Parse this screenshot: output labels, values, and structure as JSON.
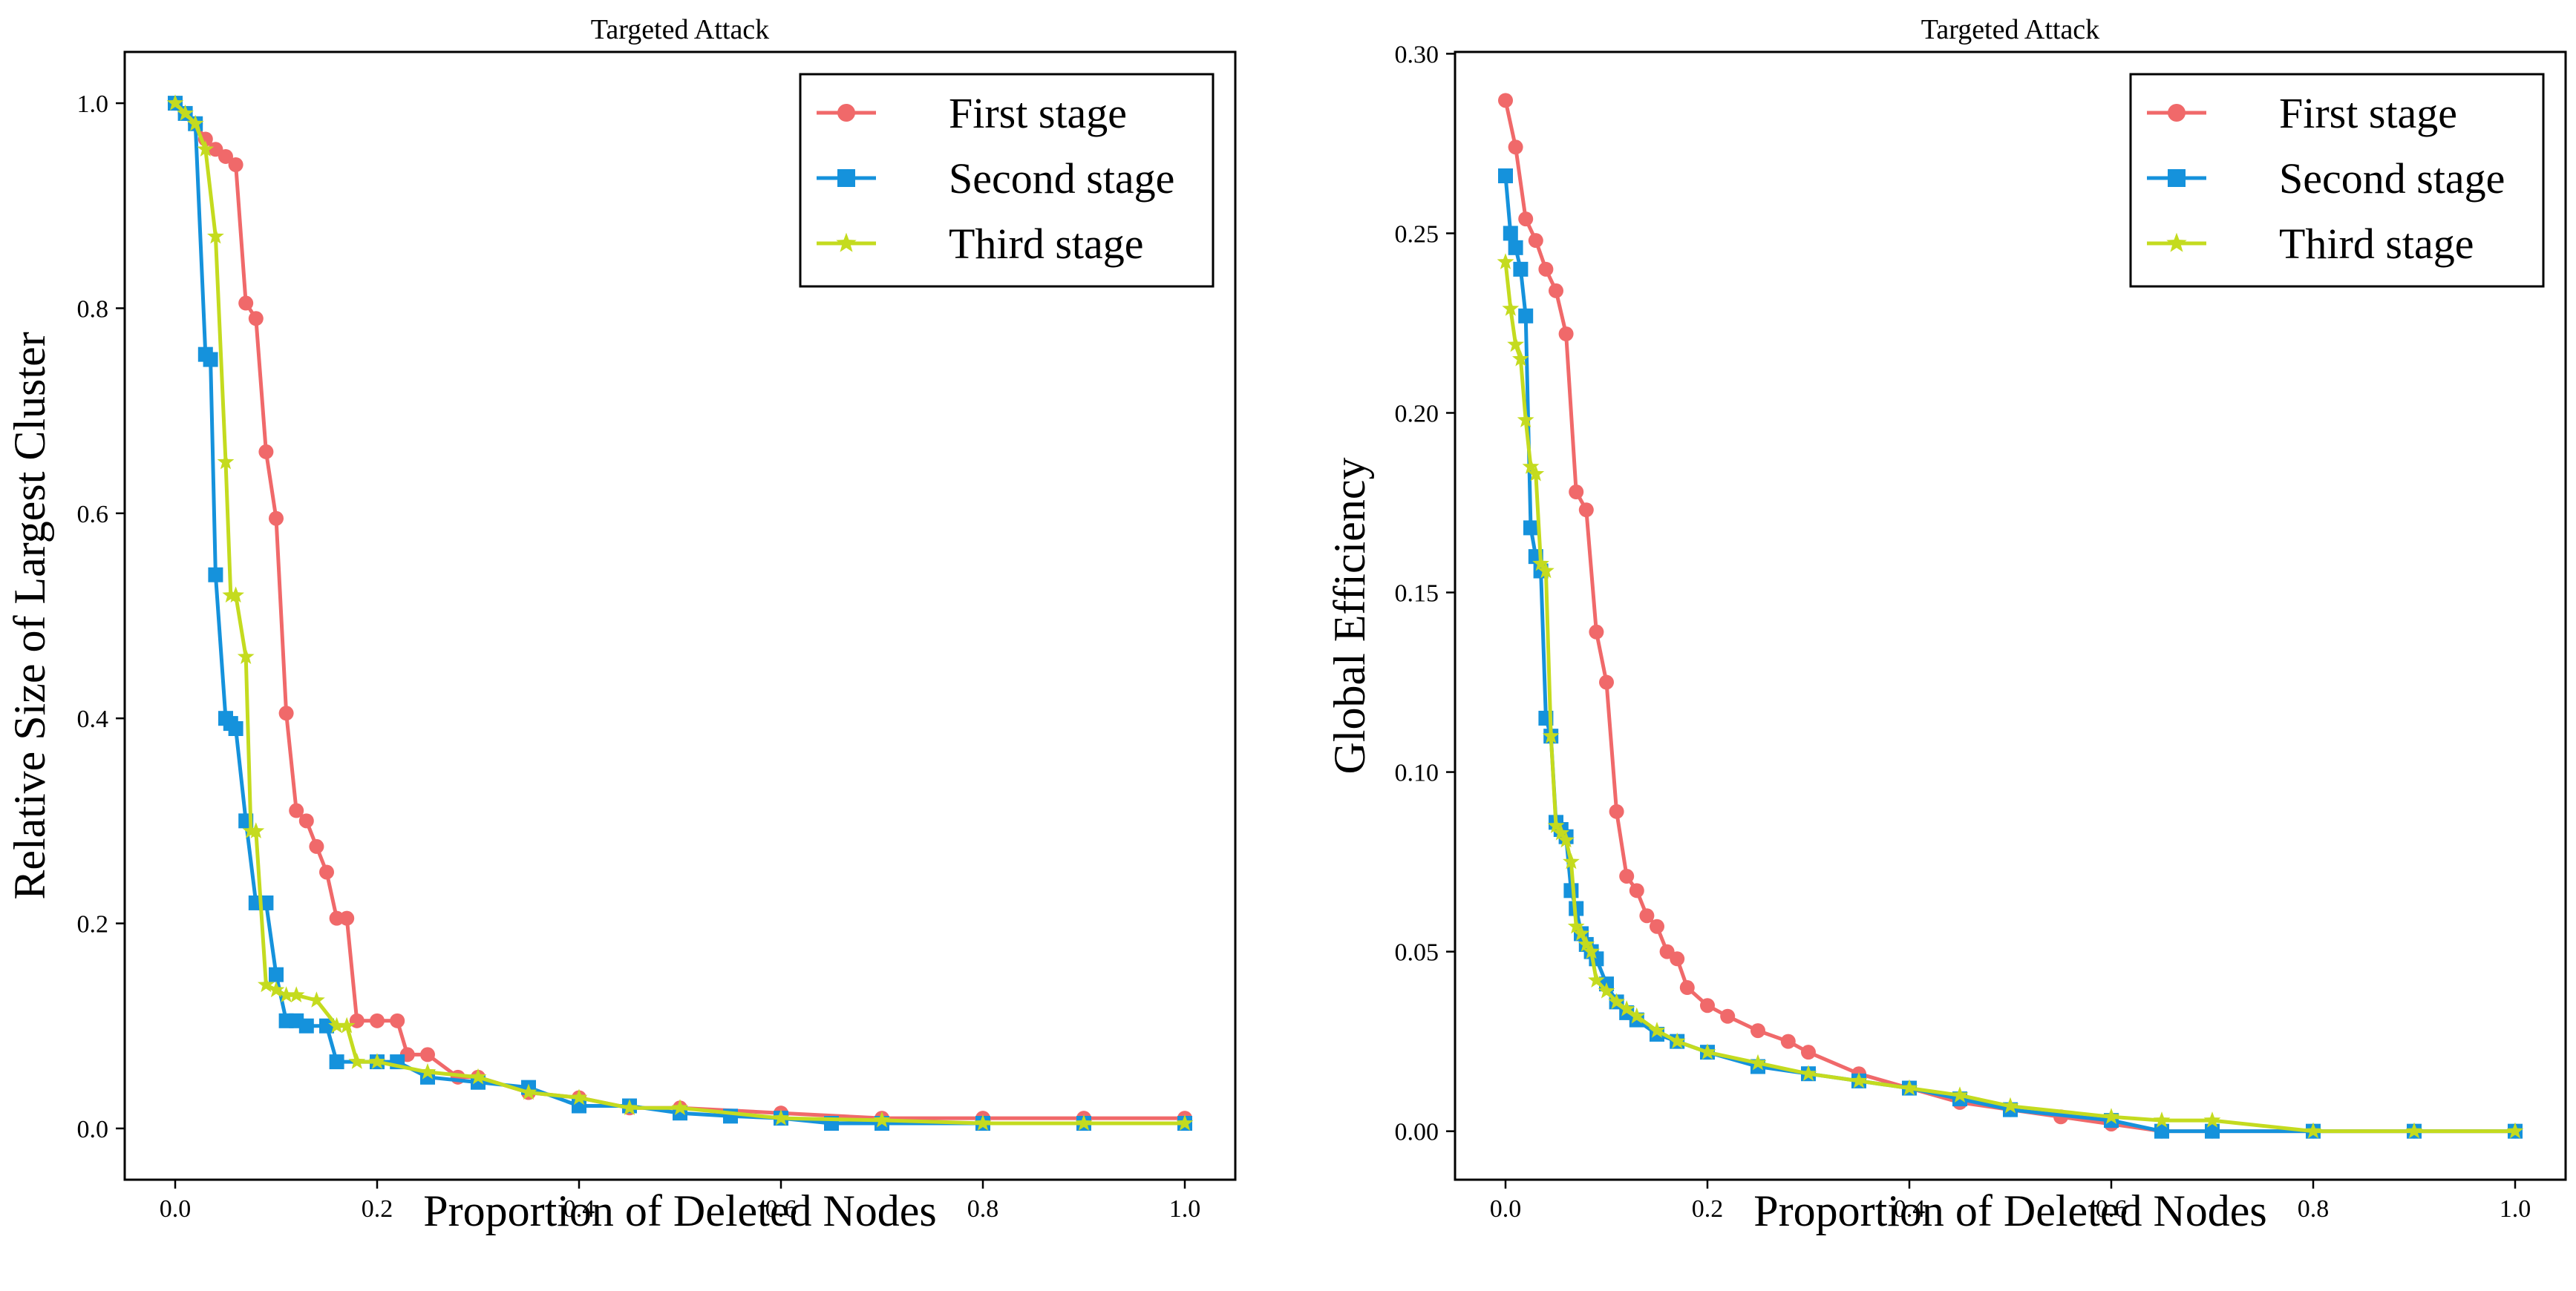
{
  "chart_data": [
    {
      "type": "line",
      "title": "Targeted Attack",
      "xlabel": "Proportion of Deleted Nodes",
      "ylabel": "Relative Size of Largest Cluster",
      "xlim": [
        -0.05,
        1.05
      ],
      "ylim": [
        -0.05,
        1.05
      ],
      "xticks": [
        "0.0",
        "0.2",
        "0.4",
        "0.6",
        "0.8",
        "1.0"
      ],
      "yticks": [
        "0.0",
        "0.2",
        "0.4",
        "0.6",
        "0.8",
        "1.0"
      ],
      "legend_position": "top-right",
      "series": [
        {
          "name": "First stage",
          "color": "#F0696A",
          "marker": "circle",
          "x": [
            0,
            0.01,
            0.02,
            0.03,
            0.04,
            0.05,
            0.06,
            0.07,
            0.08,
            0.09,
            0.1,
            0.11,
            0.12,
            0.13,
            0.14,
            0.15,
            0.16,
            0.17,
            0.18,
            0.2,
            0.22,
            0.23,
            0.25,
            0.28,
            0.3,
            0.35,
            0.4,
            0.45,
            0.5,
            0.6,
            0.7,
            0.8,
            0.9,
            1.0
          ],
          "y": [
            1.0,
            0.99,
            0.98,
            0.965,
            0.955,
            0.948,
            0.94,
            0.805,
            0.79,
            0.66,
            0.595,
            0.405,
            0.31,
            0.3,
            0.275,
            0.25,
            0.205,
            0.205,
            0.105,
            0.105,
            0.105,
            0.072,
            0.072,
            0.05,
            0.05,
            0.035,
            0.03,
            0.02,
            0.02,
            0.015,
            0.01,
            0.01,
            0.01,
            0.01
          ]
        },
        {
          "name": "Second stage",
          "color": "#1592DC",
          "marker": "square",
          "x": [
            0,
            0.01,
            0.02,
            0.03,
            0.035,
            0.04,
            0.05,
            0.055,
            0.06,
            0.07,
            0.08,
            0.09,
            0.1,
            0.11,
            0.12,
            0.13,
            0.15,
            0.16,
            0.2,
            0.22,
            0.25,
            0.3,
            0.35,
            0.4,
            0.45,
            0.5,
            0.55,
            0.6,
            0.65,
            0.7,
            0.8,
            0.9,
            1.0
          ],
          "y": [
            1.0,
            0.99,
            0.98,
            0.755,
            0.75,
            0.54,
            0.4,
            0.395,
            0.39,
            0.3,
            0.22,
            0.22,
            0.15,
            0.105,
            0.105,
            0.1,
            0.1,
            0.065,
            0.065,
            0.065,
            0.05,
            0.045,
            0.04,
            0.022,
            0.022,
            0.015,
            0.012,
            0.01,
            0.005,
            0.005,
            0.005,
            0.005,
            0.005
          ]
        },
        {
          "name": "Third stage",
          "color": "#C4DB1F",
          "marker": "star",
          "x": [
            0,
            0.01,
            0.02,
            0.03,
            0.04,
            0.05,
            0.055,
            0.06,
            0.07,
            0.075,
            0.08,
            0.09,
            0.1,
            0.11,
            0.12,
            0.14,
            0.16,
            0.17,
            0.18,
            0.2,
            0.25,
            0.3,
            0.35,
            0.4,
            0.45,
            0.5,
            0.6,
            0.7,
            0.8,
            0.9,
            1.0
          ],
          "y": [
            1.0,
            0.99,
            0.98,
            0.955,
            0.87,
            0.65,
            0.52,
            0.52,
            0.46,
            0.29,
            0.29,
            0.14,
            0.135,
            0.13,
            0.13,
            0.125,
            0.1,
            0.1,
            0.065,
            0.065,
            0.055,
            0.05,
            0.035,
            0.03,
            0.02,
            0.02,
            0.01,
            0.008,
            0.005,
            0.005,
            0.005
          ]
        }
      ]
    },
    {
      "type": "line",
      "title": "Targeted Attack",
      "xlabel": "Proportion of Deleted Nodes",
      "ylabel": "Global Efficiency",
      "xlim": [
        -0.05,
        1.05
      ],
      "ylim": [
        -0.0135,
        0.3005
      ],
      "xticks": [
        "0.0",
        "0.2",
        "0.4",
        "0.6",
        "0.8",
        "1.0"
      ],
      "yticks": [
        "0.00",
        "0.05",
        "0.10",
        "0.15",
        "0.20",
        "0.25",
        "0.30"
      ],
      "legend_position": "top-right",
      "series": [
        {
          "name": "First stage",
          "color": "#F0696A",
          "marker": "circle",
          "x": [
            0,
            0.01,
            0.02,
            0.03,
            0.04,
            0.05,
            0.06,
            0.07,
            0.08,
            0.09,
            0.1,
            0.11,
            0.12,
            0.13,
            0.14,
            0.15,
            0.16,
            0.17,
            0.18,
            0.2,
            0.22,
            0.25,
            0.28,
            0.3,
            0.35,
            0.4,
            0.45,
            0.5,
            0.55,
            0.6,
            0.65,
            0.7,
            0.8,
            0.9,
            1.0
          ],
          "y": [
            0.287,
            0.274,
            0.254,
            0.248,
            0.24,
            0.234,
            0.222,
            0.178,
            0.173,
            0.139,
            0.125,
            0.089,
            0.071,
            0.067,
            0.06,
            0.057,
            0.05,
            0.048,
            0.04,
            0.035,
            0.032,
            0.028,
            0.025,
            0.022,
            0.016,
            0.012,
            0.008,
            0.006,
            0.004,
            0.002,
            0.0,
            0.0,
            0.0,
            0.0,
            0.0
          ]
        },
        {
          "name": "Second stage",
          "color": "#1592DC",
          "marker": "square",
          "x": [
            0,
            0.005,
            0.01,
            0.015,
            0.02,
            0.025,
            0.03,
            0.035,
            0.04,
            0.045,
            0.05,
            0.055,
            0.06,
            0.065,
            0.07,
            0.075,
            0.08,
            0.085,
            0.09,
            0.1,
            0.11,
            0.12,
            0.13,
            0.15,
            0.17,
            0.2,
            0.25,
            0.3,
            0.35,
            0.4,
            0.45,
            0.5,
            0.6,
            0.65,
            0.7,
            0.8,
            0.9,
            1.0
          ],
          "y": [
            0.266,
            0.25,
            0.246,
            0.24,
            0.227,
            0.168,
            0.16,
            0.156,
            0.115,
            0.11,
            0.086,
            0.084,
            0.082,
            0.067,
            0.062,
            0.055,
            0.052,
            0.05,
            0.048,
            0.041,
            0.036,
            0.033,
            0.031,
            0.027,
            0.025,
            0.022,
            0.018,
            0.016,
            0.014,
            0.012,
            0.009,
            0.006,
            0.003,
            0.0,
            0.0,
            0.0,
            0.0,
            0.0
          ]
        },
        {
          "name": "Third stage",
          "color": "#C4DB1F",
          "marker": "star",
          "x": [
            0,
            0.005,
            0.01,
            0.015,
            0.02,
            0.025,
            0.03,
            0.035,
            0.04,
            0.045,
            0.05,
            0.055,
            0.06,
            0.065,
            0.07,
            0.075,
            0.08,
            0.085,
            0.09,
            0.1,
            0.11,
            0.12,
            0.13,
            0.15,
            0.17,
            0.2,
            0.25,
            0.3,
            0.35,
            0.4,
            0.45,
            0.5,
            0.6,
            0.65,
            0.7,
            0.8,
            0.9,
            1.0
          ],
          "y": [
            0.242,
            0.229,
            0.219,
            0.215,
            0.198,
            0.185,
            0.183,
            0.158,
            0.156,
            0.11,
            0.085,
            0.083,
            0.081,
            0.075,
            0.057,
            0.055,
            0.052,
            0.05,
            0.042,
            0.039,
            0.036,
            0.034,
            0.032,
            0.028,
            0.025,
            0.022,
            0.019,
            0.016,
            0.014,
            0.012,
            0.01,
            0.007,
            0.004,
            0.003,
            0.003,
            0.0,
            0.0,
            0.0
          ]
        }
      ]
    }
  ]
}
